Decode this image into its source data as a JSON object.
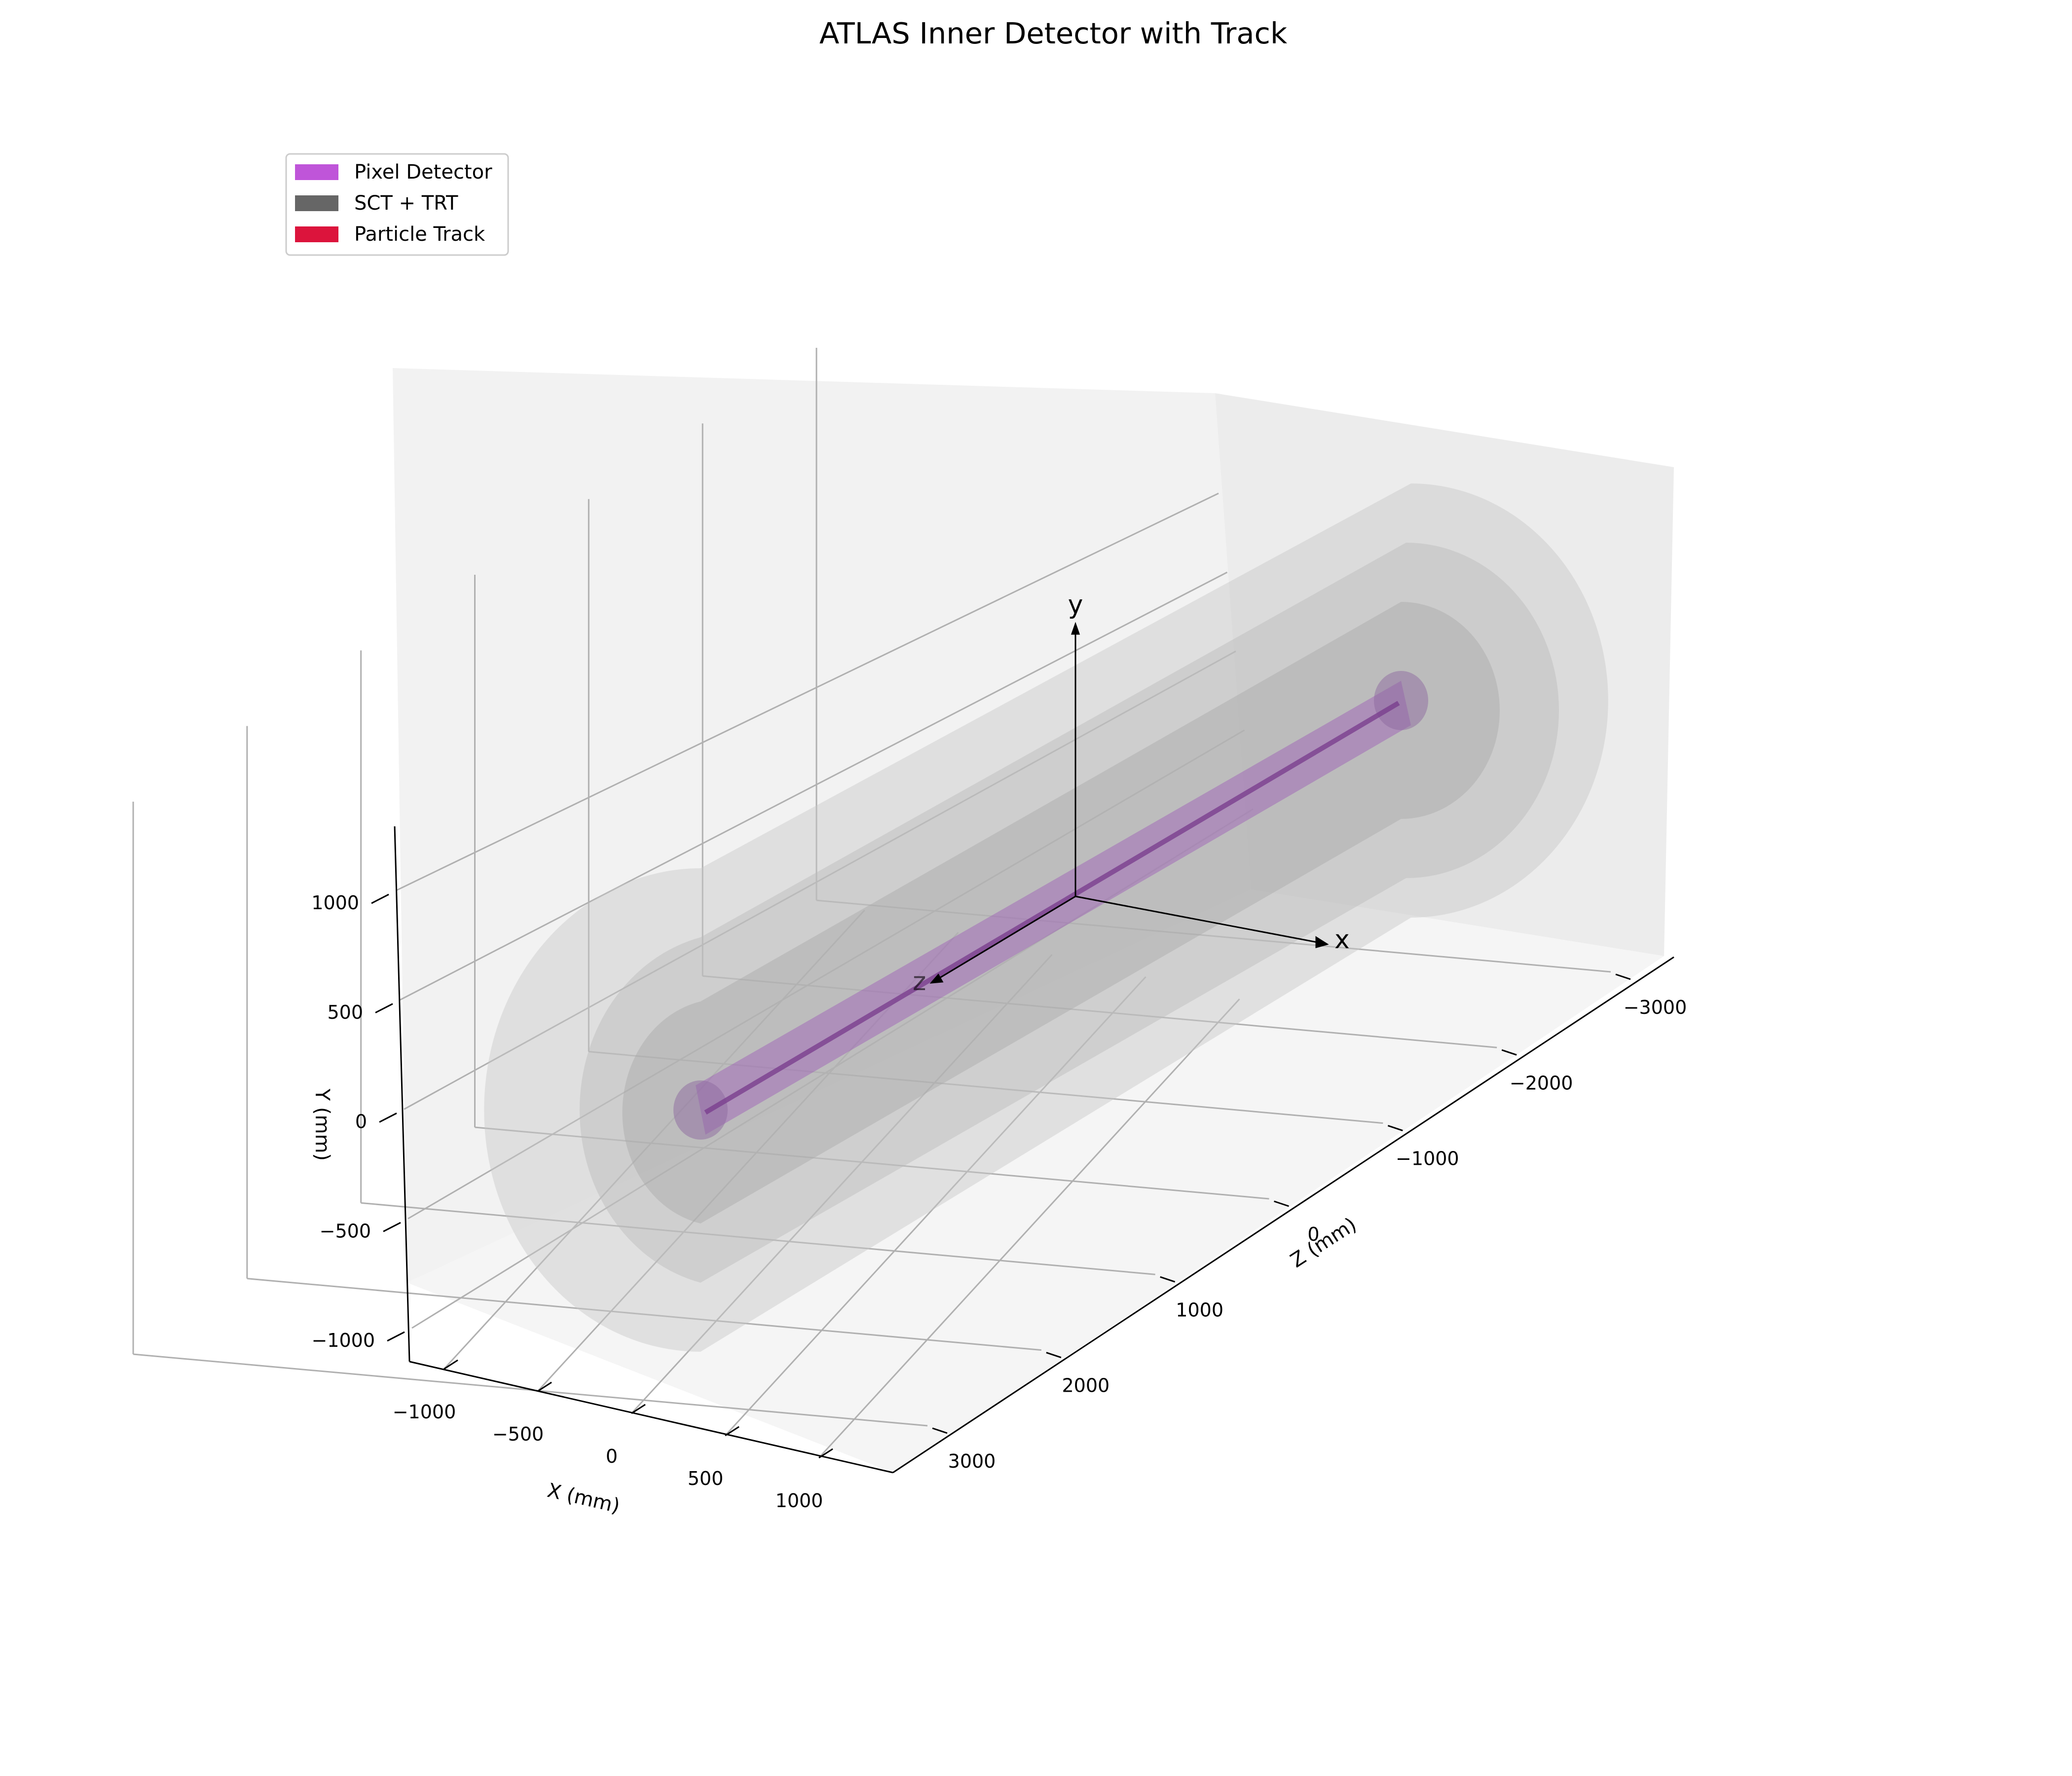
{
  "chart_data": {
    "type": "3d-geometry",
    "title": "ATLAS Inner Detector with Track",
    "xlabel": "X (mm)",
    "ylabel": "Y (mm)",
    "zlabel": "Z (mm)",
    "x_ticks": [
      "−1000",
      "−500",
      "0",
      "500",
      "1000"
    ],
    "y_ticks": [
      "−1000",
      "−500",
      "0",
      "500",
      "1000"
    ],
    "z_ticks": [
      "−3000",
      "−2000",
      "−1000",
      "0",
      "1000",
      "2000",
      "3000"
    ],
    "xlim": [
      -1100,
      1100
    ],
    "ylim": [
      -1100,
      1100
    ],
    "zlim": [
      -3500,
      3500
    ],
    "legend": [
      {
        "label": "Pixel Detector",
        "color": "#bf55d9"
      },
      {
        "label": "SCT + TRT",
        "color": "#666666"
      },
      {
        "label": "Particle Track",
        "color": "#dc143c"
      }
    ],
    "legend_position": "upper-left",
    "grid": true,
    "arrow_labels": {
      "x": "x",
      "y": "y",
      "z": "z"
    }
  }
}
